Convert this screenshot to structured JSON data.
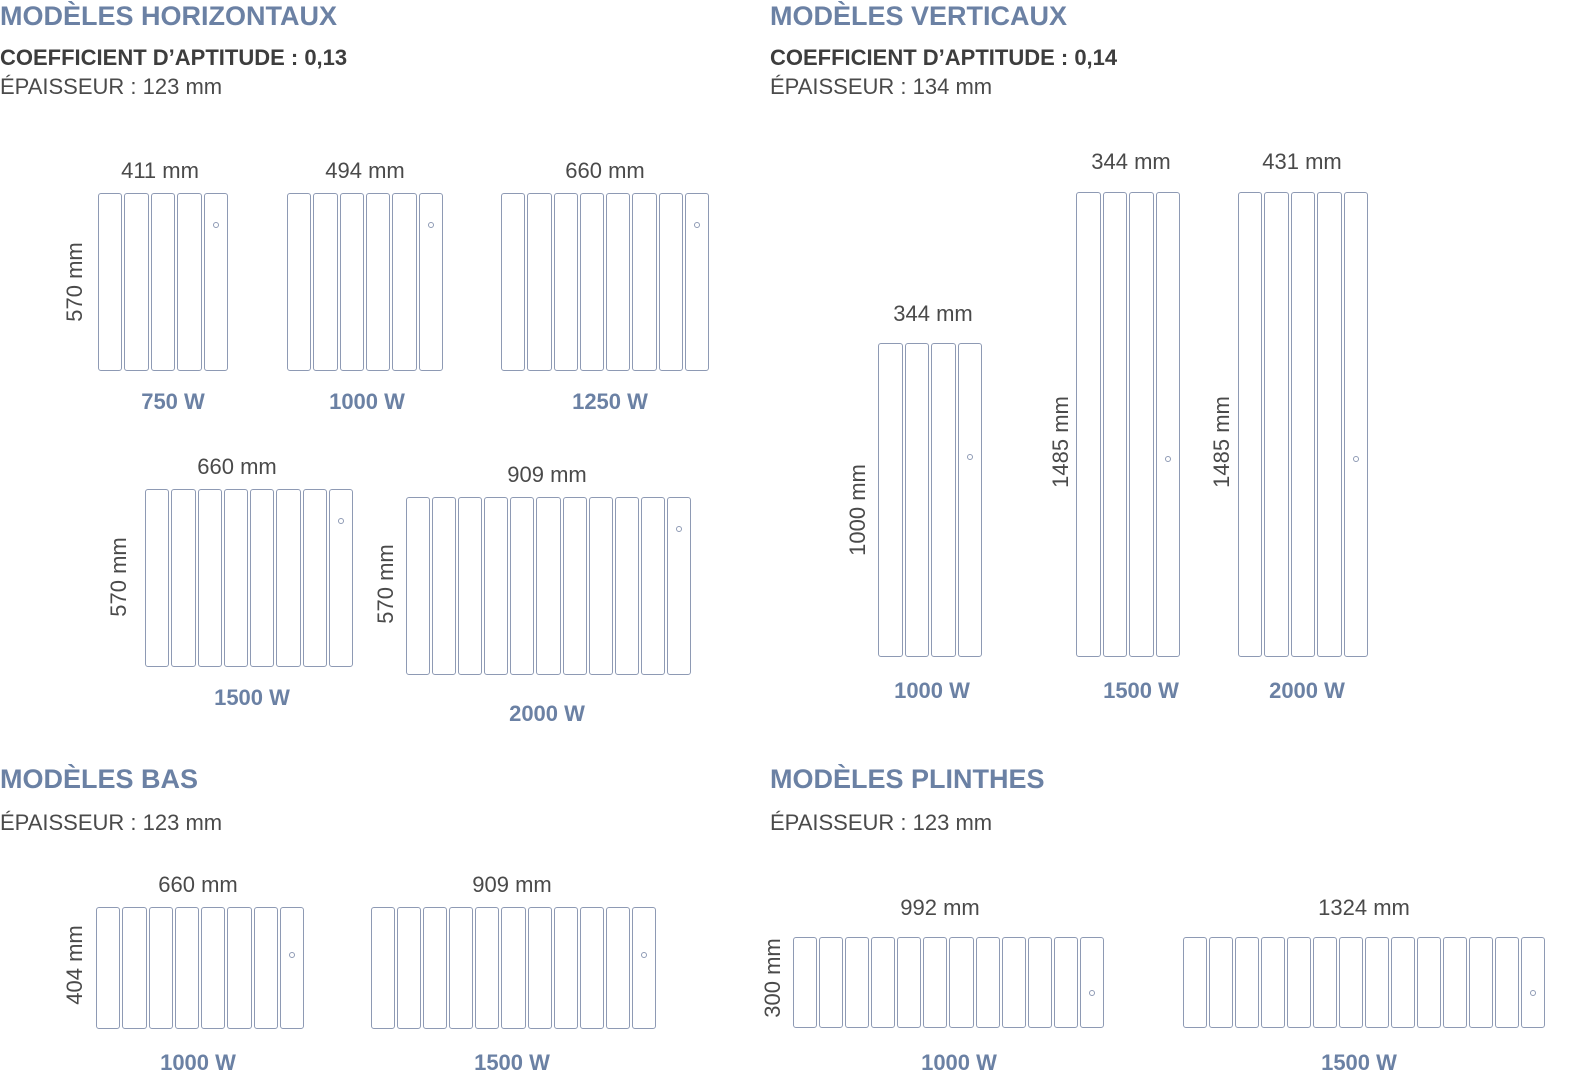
{
  "horizontaux": {
    "title": "MODÈLES HORIZONTAUX",
    "coefficient": "COEFFICIENT D’APTITUDE : 0,13",
    "thickness": "ÉPAISSEUR :  123 mm",
    "models": [
      {
        "width": "411 mm",
        "height": "570 mm",
        "power": "750 W",
        "fins": 5
      },
      {
        "width": "494 mm",
        "power": "1000 W",
        "fins": 6
      },
      {
        "width": "660 mm",
        "power": "1250 W",
        "fins": 8
      },
      {
        "width": "660 mm",
        "height": "570 mm",
        "power": "1500 W",
        "fins": 8
      },
      {
        "width": "909 mm",
        "height": "570 mm",
        "power": "2000 W",
        "fins": 11
      }
    ]
  },
  "verticaux": {
    "title": "MODÈLES VERTICAUX",
    "coefficient": "COEFFICIENT D’APTITUDE : 0,14",
    "thickness": "ÉPAISSEUR : 134 mm",
    "models": [
      {
        "width": "344 mm",
        "height": "1000 mm",
        "power": "1000 W",
        "fins": 4
      },
      {
        "width": "344 mm",
        "height": "1485 mm",
        "power": "1500 W",
        "fins": 4
      },
      {
        "width": "431 mm",
        "height": "1485 mm",
        "power": "2000 W",
        "fins": 5
      }
    ]
  },
  "bas": {
    "title": "MODÈLES BAS",
    "thickness": "ÉPAISSEUR : 123 mm",
    "models": [
      {
        "width": "660 mm",
        "height": "404 mm",
        "power": "1000 W",
        "fins": 8
      },
      {
        "width": "909 mm",
        "power": "1500 W",
        "fins": 11
      }
    ]
  },
  "plinthes": {
    "title": "MODÈLES PLINTHES",
    "thickness": "ÉPAISSEUR : 123 mm",
    "models": [
      {
        "width": "992 mm",
        "height": "300 mm",
        "power": "1000 W",
        "fins": 12
      },
      {
        "width": "1324 mm",
        "power": "1500 W",
        "fins": 14
      }
    ]
  },
  "colors": {
    "accent": "#6b81a4",
    "outline": "#8e9ab4",
    "text": "#4a4a4a"
  }
}
